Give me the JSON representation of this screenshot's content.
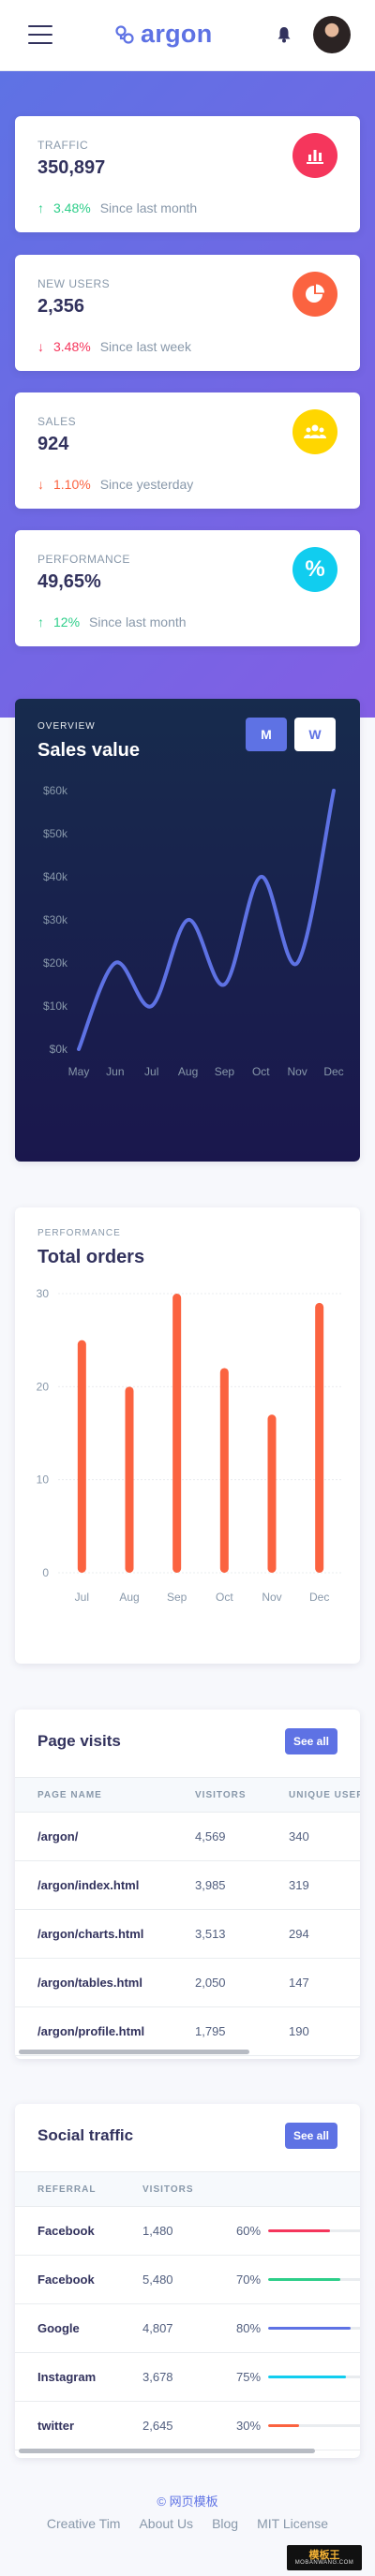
{
  "navbar": {
    "brand": "argon"
  },
  "stats": [
    {
      "title": "Traffic",
      "value": "350,897",
      "change": "3.48%",
      "direction": "up",
      "note": "Since last month",
      "icon": "chart-bar-icon",
      "color": "#f5365c"
    },
    {
      "title": "New users",
      "value": "2,356",
      "change": "3.48%",
      "direction": "down",
      "note": "Since last week",
      "icon": "chart-pie-icon",
      "color": "#fb6340"
    },
    {
      "title": "Sales",
      "value": "924",
      "change": "1.10%",
      "direction": "down",
      "note": "Since yesterday",
      "icon": "users-icon",
      "color": "#ffd600"
    },
    {
      "title": "Performance",
      "value": "49,65%",
      "change": "12%",
      "direction": "up",
      "note": "Since last month",
      "icon": "percent-icon",
      "color": "#11cdef"
    }
  ],
  "sales_chart": {
    "overline": "Overview",
    "title": "Sales value",
    "toggle_m": "M",
    "toggle_w": "W"
  },
  "orders_chart": {
    "overline": "Performance",
    "title": "Total orders"
  },
  "chart_data": [
    {
      "type": "line",
      "title": "Sales value",
      "categories": [
        "May",
        "Jun",
        "Jul",
        "Aug",
        "Sep",
        "Oct",
        "Nov",
        "Dec"
      ],
      "values": [
        0,
        20,
        10,
        30,
        15,
        40,
        20,
        60
      ],
      "ytick_labels": [
        "$0k",
        "$10k",
        "$20k",
        "$30k",
        "$40k",
        "$50k",
        "$60k"
      ],
      "ylim": [
        0,
        60
      ],
      "grid": false,
      "color": "#5e72e4"
    },
    {
      "type": "bar",
      "title": "Total orders",
      "categories": [
        "Jul",
        "Aug",
        "Sep",
        "Oct",
        "Nov",
        "Dec"
      ],
      "values": [
        25,
        20,
        30,
        22,
        17,
        29
      ],
      "ytick_labels": [
        "0",
        "10",
        "20",
        "30"
      ],
      "ylim": [
        0,
        30
      ],
      "grid": true,
      "color": "#fb6340"
    }
  ],
  "page_visits": {
    "title": "Page visits",
    "button": "See all",
    "columns": [
      "Page name",
      "Visitors",
      "Unique users"
    ],
    "rows": [
      [
        "/argon/",
        "4,569",
        "340"
      ],
      [
        "/argon/index.html",
        "3,985",
        "319"
      ],
      [
        "/argon/charts.html",
        "3,513",
        "294"
      ],
      [
        "/argon/tables.html",
        "2,050",
        "147"
      ],
      [
        "/argon/profile.html",
        "1,795",
        "190"
      ]
    ]
  },
  "social_traffic": {
    "title": "Social traffic",
    "button": "See all",
    "columns": [
      "Referral",
      "Visitors"
    ],
    "rows": [
      {
        "name": "Facebook",
        "visitors": "1,480",
        "percent": "60%",
        "fill": 0.6,
        "color": "#f5365c"
      },
      {
        "name": "Facebook",
        "visitors": "5,480",
        "percent": "70%",
        "fill": 0.7,
        "color": "#2dce89"
      },
      {
        "name": "Google",
        "visitors": "4,807",
        "percent": "80%",
        "fill": 0.8,
        "color": "#5e72e4"
      },
      {
        "name": "Instagram",
        "visitors": "3,678",
        "percent": "75%",
        "fill": 0.75,
        "color": "#11cdef"
      },
      {
        "name": "twitter",
        "visitors": "2,645",
        "percent": "30%",
        "fill": 0.3,
        "color": "#fb6340"
      }
    ]
  },
  "footer": {
    "brand": "© 网页模板",
    "links": [
      "Creative Tim",
      "About Us",
      "Blog",
      "MIT License"
    ]
  },
  "watermark": {
    "top": "模板王",
    "bottom": "MOBANWANG.COM"
  }
}
